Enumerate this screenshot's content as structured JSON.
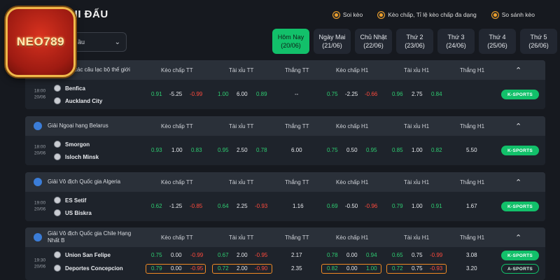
{
  "page": {
    "title": "HI ĐẤU"
  },
  "logo": {
    "text": "NEO789"
  },
  "top_links": [
    {
      "label": "Soi kèo",
      "icon": "coin-icon"
    },
    {
      "label": "Kèo chấp, Tỉ lệ kèo chấp đa dạng",
      "icon": "coin-icon"
    },
    {
      "label": "So sánh kèo",
      "icon": "coin-icon"
    }
  ],
  "select": {
    "value": "ầu"
  },
  "days": [
    {
      "name": "Hôm Nay",
      "date": "(20/06)",
      "active": true
    },
    {
      "name": "Ngày Mai",
      "date": "(21/06)"
    },
    {
      "name": "Chủ Nhật",
      "date": "(22/06)"
    },
    {
      "name": "Thứ 2",
      "date": "(23/06)"
    },
    {
      "name": "Thứ 3",
      "date": "(24/06)"
    },
    {
      "name": "Thứ 4",
      "date": "(25/06)"
    },
    {
      "name": "Thứ 5",
      "date": "(26/06)"
    }
  ],
  "columns": [
    "Kèo chấp TT",
    "Tài xỉu TT",
    "Thắng TT",
    "Kèo chấp H1",
    "Tài xỉu H1",
    "Thắng H1"
  ],
  "leagues": [
    {
      "name": "các câu lạc bộ thế giới",
      "matches": [
        {
          "time": "18:00",
          "date": "20/06",
          "home": "Benfica",
          "away": "Auckland City",
          "hcp_tt": [
            "0.91",
            "-5.25",
            "-0.99"
          ],
          "ou_tt": [
            "1.00",
            "6.00",
            "0.89"
          ],
          "win_tt": "--",
          "hcp_h1": [
            "0.75",
            "-2.25",
            "-0.66"
          ],
          "ou_h1": [
            "0.96",
            "2.75",
            "0.84"
          ],
          "win_h1": "",
          "btn": "K-SPORTS"
        }
      ]
    },
    {
      "name": "Giải Ngoại hạng Belarus",
      "matches": [
        {
          "time": "18:00",
          "date": "20/06",
          "home": "Smorgon",
          "away": "Isloch Minsk",
          "hcp_tt": [
            "0.93",
            "1.00",
            "0.83"
          ],
          "ou_tt": [
            "0.95",
            "2.50",
            "0.78"
          ],
          "win_tt": "6.00",
          "hcp_h1": [
            "0.75",
            "0.50",
            "0.95"
          ],
          "ou_h1": [
            "0.85",
            "1.00",
            "0.82"
          ],
          "win_h1": "5.50",
          "btn": "K-SPORTS"
        }
      ]
    },
    {
      "name": "Giải Vô địch Quốc gia Algeria",
      "matches": [
        {
          "time": "19:00",
          "date": "20/06",
          "home": "ES Setif",
          "away": "US Biskra",
          "hcp_tt": [
            "0.62",
            "-1.25",
            "-0.85"
          ],
          "ou_tt": [
            "0.64",
            "2.25",
            "-0.93"
          ],
          "win_tt": "1.16",
          "hcp_h1": [
            "0.69",
            "-0.50",
            "-0.96"
          ],
          "ou_h1": [
            "0.79",
            "1.00",
            "0.91"
          ],
          "win_h1": "1.67",
          "btn": "K-SPORTS"
        }
      ]
    },
    {
      "name": "Giải Vô địch Quốc gia Chile Hạng Nhất B",
      "matches": [
        {
          "time": "19:30",
          "date": "20/06",
          "home": "Union San Felipe",
          "away": "Deportes Concepcion",
          "home_odds": {
            "hcp_tt": [
              "0.75",
              "0.00",
              "-0.99"
            ],
            "ou_tt": [
              "0.67",
              "2.00",
              "-0.95"
            ],
            "win_tt": "2.17",
            "hcp_h1": [
              "0.78",
              "0.00",
              "0.94"
            ],
            "ou_h1": [
              "0.65",
              "0.75",
              "-0.99"
            ],
            "win_h1": "3.08",
            "btn": "K-SPORTS"
          },
          "away_odds": {
            "hcp_tt": [
              "0.79",
              "0.00",
              "-0.95"
            ],
            "ou_tt": [
              "0.72",
              "2.00",
              "-0.90"
            ],
            "win_tt": "2.35",
            "hcp_h1": [
              "0.82",
              "0.00",
              "1.00"
            ],
            "ou_h1": [
              "0.72",
              "0.75",
              "-0.93"
            ],
            "win_h1": "3.20",
            "btn": "A-SPORTS"
          }
        }
      ]
    }
  ]
}
